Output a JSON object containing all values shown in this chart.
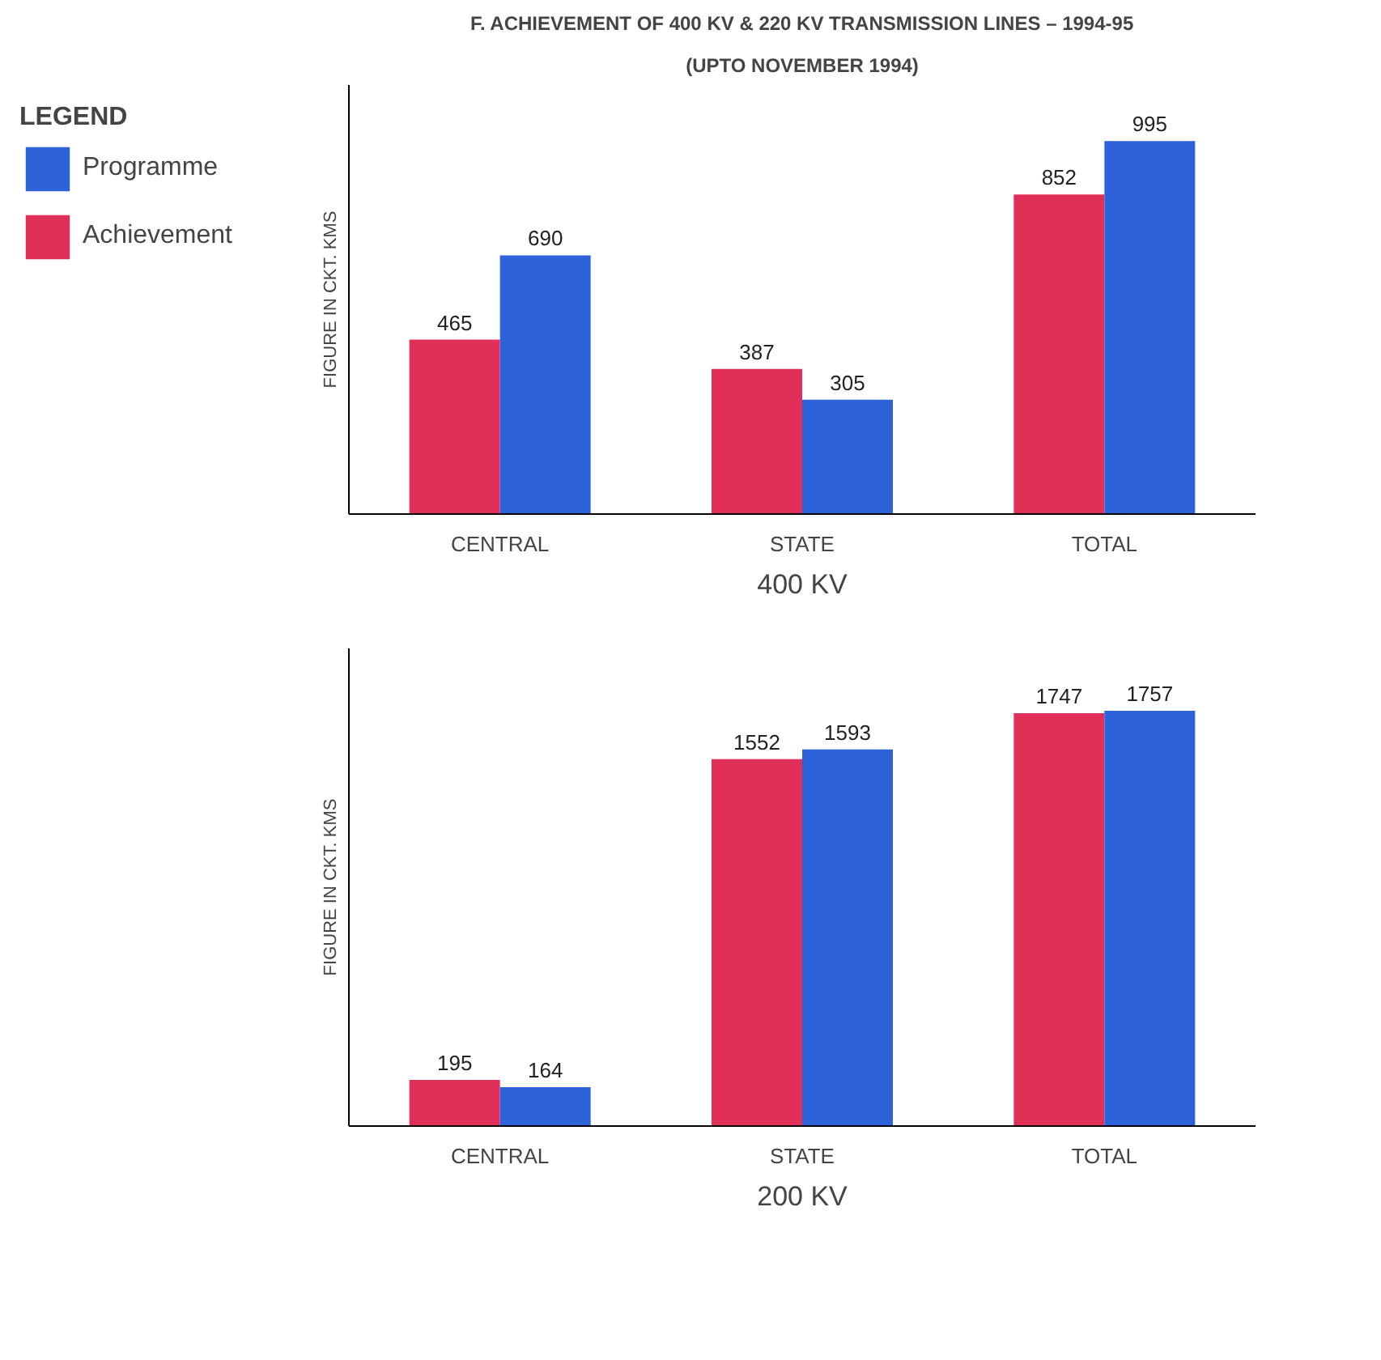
{
  "chart_data": [
    {
      "type": "bar",
      "title": "F. ACHIEVEMENT OF 400 KV & 220 KV TRANSMISSION LINES – 1994-95",
      "subtitle": "(UPTO NOVEMBER 1994)",
      "ylabel": "FIGURE IN CKT. KMS",
      "xlabel": "400 KV",
      "legend_title": "LEGEND",
      "legend": "top left",
      "grid": false,
      "data_labels": true,
      "tick_labels": "x",
      "categories": [
        "CENTRAL",
        "STATE",
        "TOTAL"
      ],
      "series": [
        {
          "name": "Achievement",
          "color": "#e0305a",
          "values": [
            465,
            387,
            852
          ]
        },
        {
          "name": "Programme",
          "color": "#2e62d8",
          "values": [
            690,
            305,
            995
          ]
        }
      ]
    },
    {
      "type": "bar",
      "ylabel": "FIGURE IN CKT. KMS",
      "xlabel": "200 KV",
      "grid": false,
      "data_labels": true,
      "tick_labels": "x",
      "categories": [
        "CENTRAL",
        "STATE",
        "TOTAL"
      ],
      "series": [
        {
          "color": "#e0305a",
          "values": [
            195,
            1552,
            1747
          ]
        },
        {
          "color": "#2e62d8",
          "values": [
            164,
            1593,
            1757
          ]
        }
      ]
    }
  ]
}
